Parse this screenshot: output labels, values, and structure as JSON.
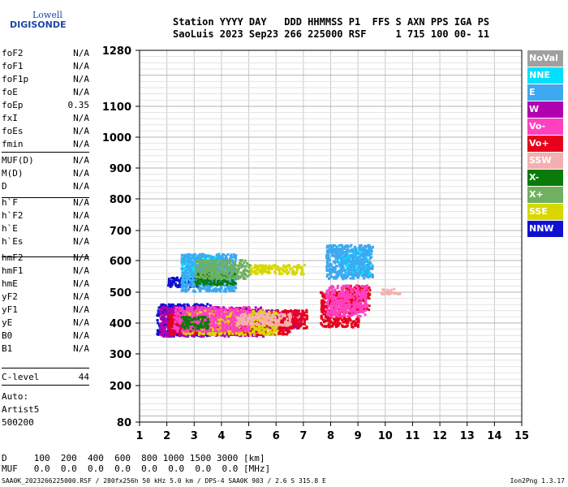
{
  "logo": {
    "line1": "Lowell",
    "line2": "DIGISONDE"
  },
  "header": {
    "line1": "Station YYYY DAY   DDD HHMMSS P1  FFS S AXN PPS IGA PS",
    "line2": "SaoLuis 2023 Sep23 266 225000 RSF     1 715 100 00- 11"
  },
  "params": [
    {
      "name": "foF2",
      "value": "N/A"
    },
    {
      "name": "foF1",
      "value": "N/A"
    },
    {
      "name": "foF1p",
      "value": "N/A"
    },
    {
      "name": "foE",
      "value": "N/A"
    },
    {
      "name": "foEp",
      "value": "0.35"
    },
    {
      "name": "fxI",
      "value": "N/A"
    },
    {
      "name": "foEs",
      "value": "N/A"
    },
    {
      "name": "fmin",
      "value": "N/A"
    },
    {
      "name": "MUF(D)",
      "value": "N/A"
    },
    {
      "name": "M(D)",
      "value": "N/A"
    },
    {
      "name": "D",
      "value": "N/A"
    },
    {
      "name": "h`F",
      "value": "N/A"
    },
    {
      "name": "h`F2",
      "value": "N/A"
    },
    {
      "name": "h`E",
      "value": "N/A"
    },
    {
      "name": "h`Es",
      "value": "N/A"
    },
    {
      "name": "hmF2",
      "value": "N/A"
    },
    {
      "name": "hmF1",
      "value": "N/A"
    },
    {
      "name": "hmE",
      "value": "N/A"
    },
    {
      "name": "yF2",
      "value": "N/A"
    },
    {
      "name": "yF1",
      "value": "N/A"
    },
    {
      "name": "yE",
      "value": "N/A"
    },
    {
      "name": "B0",
      "value": "N/A"
    },
    {
      "name": "B1",
      "value": "N/A"
    }
  ],
  "clevel": {
    "name": "C-level",
    "value": "44"
  },
  "auto": {
    "line1": "Auto:",
    "line2": "Artist5",
    "line3": "500200"
  },
  "legend": [
    {
      "label": "NoVal",
      "color": "#a0a0a0"
    },
    {
      "label": "NNE",
      "color": "#00e0ff"
    },
    {
      "label": "E",
      "color": "#3ea8f0"
    },
    {
      "label": "W",
      "color": "#b000b0"
    },
    {
      "label": "Vo-",
      "color": "#ff40c0"
    },
    {
      "label": "Vo+",
      "color": "#e8001c"
    },
    {
      "label": "SSW",
      "color": "#f4b0b0"
    },
    {
      "label": "X-",
      "color": "#0a7a0a"
    },
    {
      "label": "X+",
      "color": "#70b060"
    },
    {
      "label": "SSE",
      "color": "#d8d800"
    },
    {
      "label": "NNW",
      "color": "#1010d0"
    }
  ],
  "bottom": {
    "line1": "D     100  200  400  600  800 1000 1500 3000 [km]",
    "line2": "MUF   0.0  0.0  0.0  0.0  0.0  0.0  0.0  0.0 [MHz]"
  },
  "footer": {
    "left": "SAA0K_2023266225000.RSF / 280fx256h 50 kHz 5.0 km / DPS-4 SAA0K 903 / 2.6 S 315.8 E",
    "right": "Ion2Png 1.3.17"
  },
  "chart_data": {
    "type": "scatter",
    "xlim": [
      1,
      15
    ],
    "ylim": [
      80,
      1280
    ],
    "xticks": [
      1,
      2,
      3,
      4,
      5,
      6,
      7,
      8,
      9,
      10,
      11,
      12,
      13,
      14,
      15
    ],
    "yticks": [
      80,
      200,
      300,
      400,
      500,
      600,
      700,
      800,
      900,
      1000,
      1100,
      1280
    ],
    "grid": true,
    "legend_position": "right",
    "series": [
      {
        "name": "NNW",
        "color": "#1010d0",
        "regions": [
          [
            1.6,
            3.6,
            355,
            460
          ],
          [
            2.0,
            3.5,
            515,
            545
          ]
        ]
      },
      {
        "name": "W",
        "color": "#b000b0",
        "regions": [
          [
            1.7,
            5.5,
            355,
            450
          ],
          [
            5.5,
            6.9,
            380,
            440
          ]
        ]
      },
      {
        "name": "Vo+",
        "color": "#e8001c",
        "regions": [
          [
            2.0,
            6.5,
            360,
            430
          ],
          [
            6.0,
            7.1,
            380,
            440
          ],
          [
            7.6,
            9.0,
            385,
            500
          ],
          [
            8.5,
            9.4,
            440,
            520
          ]
        ]
      },
      {
        "name": "SSE",
        "color": "#d8d800",
        "regions": [
          [
            2.5,
            6.0,
            360,
            440
          ],
          [
            5.0,
            7.0,
            555,
            585
          ],
          [
            3.0,
            5.0,
            400,
            430
          ]
        ]
      },
      {
        "name": "NNE",
        "color": "#00e0ff",
        "regions": [
          [
            2.5,
            4.0,
            520,
            620
          ],
          [
            8.2,
            9.4,
            550,
            640
          ]
        ]
      },
      {
        "name": "E",
        "color": "#3ea8f0",
        "regions": [
          [
            2.5,
            4.5,
            500,
            620
          ],
          [
            7.8,
            9.5,
            540,
            650
          ]
        ]
      },
      {
        "name": "Vo-",
        "color": "#ff40c0",
        "regions": [
          [
            2.2,
            5.0,
            370,
            450
          ],
          [
            7.8,
            9.3,
            420,
            520
          ]
        ]
      },
      {
        "name": "SSW",
        "color": "#f4b0b0",
        "regions": [
          [
            4.5,
            6.5,
            390,
            430
          ],
          [
            9.8,
            10.5,
            490,
            510
          ]
        ]
      },
      {
        "name": "X-",
        "color": "#0a7a0a",
        "regions": [
          [
            3.0,
            4.5,
            520,
            560
          ],
          [
            2.5,
            3.5,
            380,
            420
          ]
        ]
      },
      {
        "name": "X+",
        "color": "#70b060",
        "regions": [
          [
            3.0,
            5.0,
            540,
            600
          ]
        ]
      }
    ]
  }
}
